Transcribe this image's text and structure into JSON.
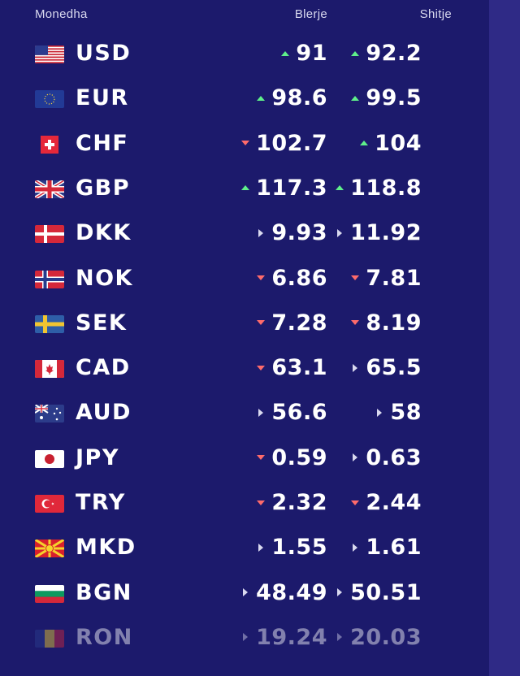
{
  "header": {
    "currency": "Monedha",
    "buy": "Blerje",
    "sell": "Shitje"
  },
  "colors": {
    "background": "#1c1a6c",
    "up": "#5ff08a",
    "down": "#ff6b6b",
    "unchanged": "#d9d9ef"
  },
  "rows": [
    {
      "code": "USD",
      "flag": "us-flag-icon",
      "buy": "91",
      "buy_trend": "up",
      "sell": "92.2",
      "sell_trend": "up"
    },
    {
      "code": "EUR",
      "flag": "eu-flag-icon",
      "buy": "98.6",
      "buy_trend": "up",
      "sell": "99.5",
      "sell_trend": "up"
    },
    {
      "code": "CHF",
      "flag": "ch-flag-icon",
      "buy": "102.7",
      "buy_trend": "down",
      "sell": "104",
      "sell_trend": "up"
    },
    {
      "code": "GBP",
      "flag": "gb-flag-icon",
      "buy": "117.3",
      "buy_trend": "up",
      "sell": "118.8",
      "sell_trend": "up"
    },
    {
      "code": "DKK",
      "flag": "dk-flag-icon",
      "buy": "9.93",
      "buy_trend": "same",
      "sell": "11.92",
      "sell_trend": "same"
    },
    {
      "code": "NOK",
      "flag": "no-flag-icon",
      "buy": "6.86",
      "buy_trend": "down",
      "sell": "7.81",
      "sell_trend": "down"
    },
    {
      "code": "SEK",
      "flag": "se-flag-icon",
      "buy": "7.28",
      "buy_trend": "down",
      "sell": "8.19",
      "sell_trend": "down"
    },
    {
      "code": "CAD",
      "flag": "ca-flag-icon",
      "buy": "63.1",
      "buy_trend": "down",
      "sell": "65.5",
      "sell_trend": "same"
    },
    {
      "code": "AUD",
      "flag": "au-flag-icon",
      "buy": "56.6",
      "buy_trend": "same",
      "sell": "58",
      "sell_trend": "same"
    },
    {
      "code": "JPY",
      "flag": "jp-flag-icon",
      "buy": "0.59",
      "buy_trend": "down",
      "sell": "0.63",
      "sell_trend": "same"
    },
    {
      "code": "TRY",
      "flag": "tr-flag-icon",
      "buy": "2.32",
      "buy_trend": "down",
      "sell": "2.44",
      "sell_trend": "down"
    },
    {
      "code": "MKD",
      "flag": "mk-flag-icon",
      "buy": "1.55",
      "buy_trend": "same",
      "sell": "1.61",
      "sell_trend": "same"
    },
    {
      "code": "BGN",
      "flag": "bg-flag-icon",
      "buy": "48.49",
      "buy_trend": "same",
      "sell": "50.51",
      "sell_trend": "same"
    },
    {
      "code": "RON",
      "flag": "ro-flag-icon",
      "buy": "19.24",
      "buy_trend": "same",
      "sell": "20.03",
      "sell_trend": "same"
    }
  ]
}
